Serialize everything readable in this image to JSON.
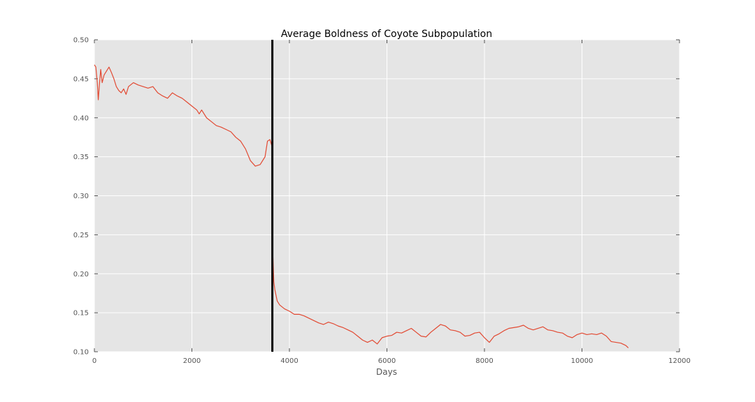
{
  "chart_data": {
    "type": "line",
    "title": "Average Boldness of Coyote Subpopulation",
    "xlabel": "Days",
    "ylabel": "",
    "xlim": [
      0,
      12000
    ],
    "ylim": [
      0.1,
      0.5
    ],
    "x_ticks": [
      0,
      2000,
      4000,
      6000,
      8000,
      10000,
      12000
    ],
    "x_tick_labels": [
      "0",
      "2000",
      "4000",
      "6000",
      "8000",
      "10000",
      "12000"
    ],
    "y_ticks": [
      0.1,
      0.15,
      0.2,
      0.25,
      0.3,
      0.35,
      0.4,
      0.45,
      0.5
    ],
    "y_tick_labels": [
      "0.10",
      "0.15",
      "0.20",
      "0.25",
      "0.30",
      "0.35",
      "0.40",
      "0.45",
      "0.50"
    ],
    "grid": true,
    "legend": "none",
    "background_color": "#e5e5e5",
    "line_color": "#e24a33",
    "vline": {
      "x": 3650,
      "color": "#000000"
    },
    "series": [
      {
        "color": "#e24a33",
        "x": [
          0,
          30,
          60,
          80,
          100,
          130,
          160,
          200,
          250,
          300,
          350,
          400,
          450,
          500,
          550,
          600,
          650,
          700,
          800,
          900,
          1000,
          1100,
          1200,
          1300,
          1400,
          1500,
          1600,
          1700,
          1800,
          1900,
          2000,
          2100,
          2150,
          2200,
          2300,
          2400,
          2500,
          2600,
          2700,
          2800,
          2900,
          3000,
          3100,
          3200,
          3300,
          3400,
          3500,
          3550,
          3600,
          3650,
          3660,
          3680,
          3700,
          3750,
          3800,
          3900,
          4000,
          4100,
          4200,
          4300,
          4400,
          4500,
          4600,
          4700,
          4800,
          4900,
          5000,
          5100,
          5200,
          5300,
          5400,
          5500,
          5600,
          5700,
          5800,
          5900,
          6000,
          6100,
          6200,
          6300,
          6400,
          6500,
          6600,
          6700,
          6800,
          6900,
          7000,
          7100,
          7200,
          7300,
          7400,
          7500,
          7600,
          7700,
          7800,
          7900,
          8000,
          8100,
          8200,
          8300,
          8400,
          8500,
          8600,
          8700,
          8800,
          8900,
          9000,
          9100,
          9200,
          9300,
          9400,
          9500,
          9600,
          9700,
          9800,
          9900,
          10000,
          10100,
          10200,
          10300,
          10400,
          10500,
          10600,
          10700,
          10800,
          10900,
          10950
        ],
        "y": [
          0.468,
          0.465,
          0.445,
          0.423,
          0.44,
          0.462,
          0.445,
          0.455,
          0.46,
          0.465,
          0.458,
          0.45,
          0.44,
          0.435,
          0.432,
          0.437,
          0.43,
          0.44,
          0.445,
          0.442,
          0.44,
          0.438,
          0.44,
          0.432,
          0.428,
          0.425,
          0.432,
          0.428,
          0.425,
          0.42,
          0.415,
          0.41,
          0.405,
          0.41,
          0.4,
          0.395,
          0.39,
          0.388,
          0.385,
          0.382,
          0.375,
          0.37,
          0.36,
          0.345,
          0.338,
          0.34,
          0.35,
          0.37,
          0.372,
          0.362,
          0.225,
          0.19,
          0.18,
          0.165,
          0.16,
          0.155,
          0.152,
          0.148,
          0.148,
          0.146,
          0.143,
          0.14,
          0.137,
          0.135,
          0.138,
          0.136,
          0.133,
          0.131,
          0.128,
          0.125,
          0.12,
          0.115,
          0.112,
          0.115,
          0.11,
          0.118,
          0.12,
          0.121,
          0.125,
          0.124,
          0.127,
          0.13,
          0.125,
          0.12,
          0.119,
          0.125,
          0.13,
          0.135,
          0.133,
          0.128,
          0.127,
          0.125,
          0.12,
          0.121,
          0.124,
          0.125,
          0.118,
          0.112,
          0.12,
          0.123,
          0.127,
          0.13,
          0.131,
          0.132,
          0.134,
          0.13,
          0.128,
          0.13,
          0.132,
          0.128,
          0.127,
          0.125,
          0.124,
          0.12,
          0.118,
          0.122,
          0.124,
          0.122,
          0.123,
          0.122,
          0.124,
          0.12,
          0.113,
          0.112,
          0.111,
          0.108,
          0.105
        ]
      }
    ]
  }
}
